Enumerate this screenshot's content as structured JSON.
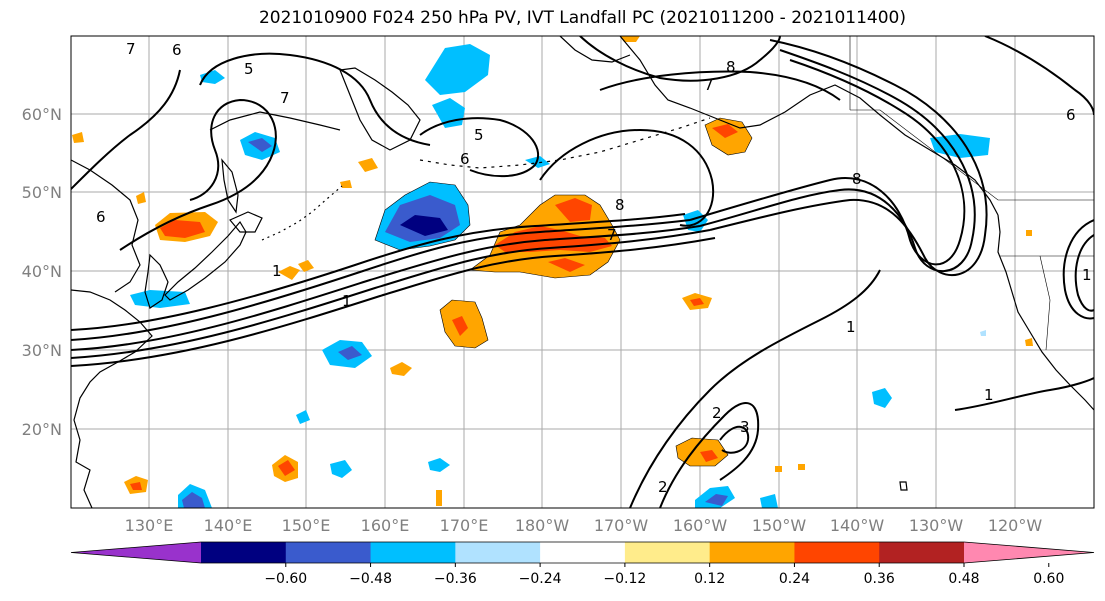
{
  "title": "2021010900 F024 250 hPa PV, IVT Landfall PC (2021011200 - 2021011400)",
  "lat_labels": [
    "60°N",
    "50°N",
    "40°N",
    "30°N",
    "20°N"
  ],
  "lon_labels": [
    "130°E",
    "140°E",
    "150°E",
    "160°E",
    "170°E",
    "180°W",
    "170°W",
    "160°W",
    "150°W",
    "140°W",
    "130°W",
    "120°W"
  ],
  "contour_labels": [
    "7",
    "6",
    "5",
    "7",
    "6",
    "5",
    "6",
    "1",
    "7",
    "8",
    "8",
    "6",
    "7",
    "8",
    "1",
    "1",
    "1",
    "2",
    "3",
    "2",
    "1"
  ],
  "colorbar": {
    "colors": [
      "#9932cc",
      "#000080",
      "#3a5bcd",
      "#00bfff",
      "#b0e2ff",
      "#ffffff",
      "#ffec8b",
      "#ffa500",
      "#ff4500",
      "#b22222",
      "#ff88b0"
    ],
    "tick_labels": [
      "-0.60",
      "-0.48",
      "-0.36",
      "-0.24",
      "-0.12",
      "0.12",
      "0.24",
      "0.36",
      "0.48",
      "0.60"
    ]
  }
}
